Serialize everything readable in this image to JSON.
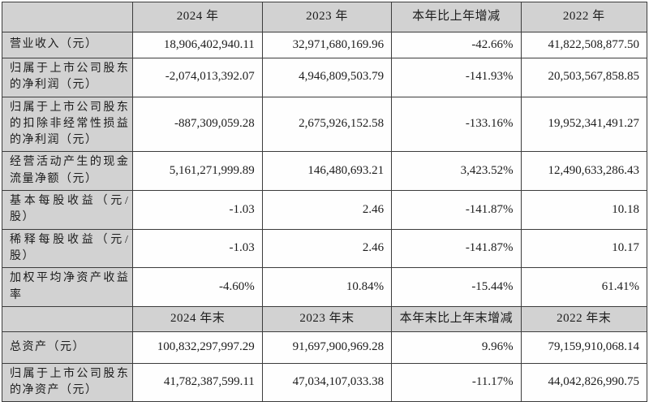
{
  "colors": {
    "header_bg": "#d2d2d2",
    "label_bg": "#d2d2d2",
    "cell_bg": "#fefefe",
    "border": "#3c3c3c",
    "text": "#1c1c1c"
  },
  "table": {
    "sections": [
      {
        "header": [
          "",
          "2024 年",
          "2023 年",
          "本年比上年增减",
          "2022 年"
        ],
        "rows": [
          {
            "label": "营业收入（元）",
            "values": [
              "18,906,402,940.11",
              "32,971,680,169.96",
              "-42.66%",
              "41,822,508,877.50"
            ]
          },
          {
            "label": "归属于上市公司股东的净利润（元）",
            "values": [
              "-2,074,013,392.07",
              "4,946,809,503.79",
              "-141.93%",
              "20,503,567,858.85"
            ]
          },
          {
            "label": "归属于上市公司股东的扣除非经常性损益的净利润（元）",
            "values": [
              "-887,309,059.28",
              "2,675,926,152.58",
              "-133.16%",
              "19,952,341,491.27"
            ]
          },
          {
            "label": "经营活动产生的现金流量净额（元）",
            "values": [
              "5,161,271,999.89",
              "146,480,693.21",
              "3,423.52%",
              "12,490,633,286.43"
            ]
          },
          {
            "label": "基本每股收益（元/股）",
            "values": [
              "-1.03",
              "2.46",
              "-141.87%",
              "10.18"
            ]
          },
          {
            "label": "稀释每股收益（元/股）",
            "values": [
              "-1.03",
              "2.46",
              "-141.87%",
              "10.17"
            ]
          },
          {
            "label": "加权平均净资产收益率",
            "values": [
              "-4.60%",
              "10.84%",
              "-15.44%",
              "61.41%"
            ]
          }
        ]
      },
      {
        "header": [
          "",
          "2024 年末",
          "2023 年末",
          "本年末比上年末增减",
          "2022 年末"
        ],
        "rows": [
          {
            "label": "总资产（元）",
            "values": [
              "100,832,297,997.29",
              "91,697,900,969.28",
              "9.96%",
              "79,159,910,068.14"
            ]
          },
          {
            "label": "归属于上市公司股东的净资产（元）",
            "values": [
              "41,782,387,599.11",
              "47,034,107,033.38",
              "-11.17%",
              "44,042,826,990.75"
            ]
          }
        ]
      }
    ]
  }
}
